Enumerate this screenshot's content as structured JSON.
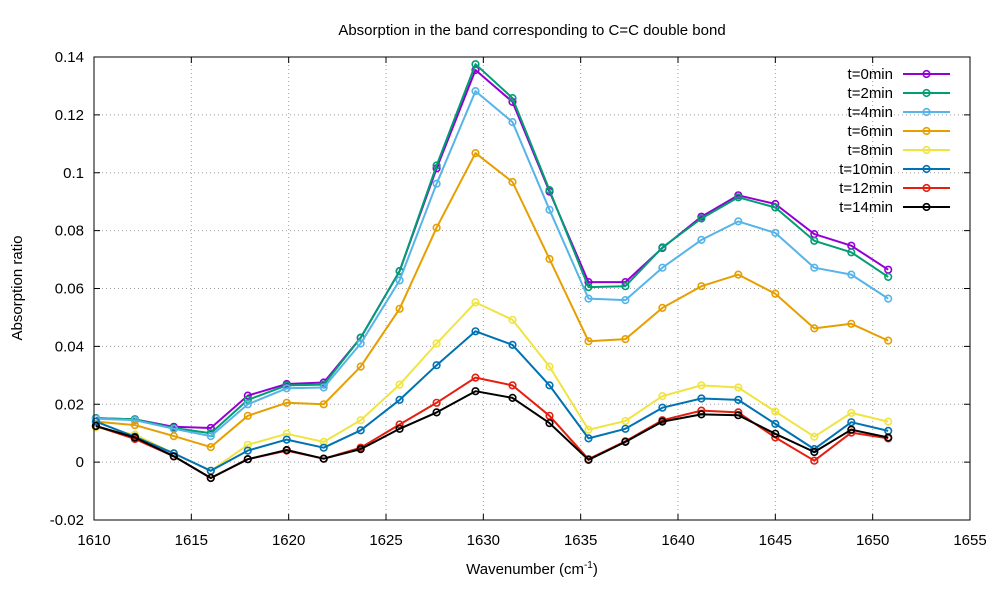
{
  "chart_data": {
    "type": "line",
    "title": "Absorption in the band corresponding to C=C double bond",
    "xlabel": "Wavenumber (cm",
    "xlabel_sup": "-1",
    "xlabel_end": ")",
    "ylabel": "Absorption ratio",
    "xlim": [
      1610,
      1655
    ],
    "ylim": [
      -0.02,
      0.14
    ],
    "xticks": [
      1610,
      1615,
      1620,
      1625,
      1630,
      1635,
      1640,
      1645,
      1650,
      1655
    ],
    "yticks": [
      -0.02,
      0,
      0.02,
      0.04,
      0.06,
      0.08,
      0.1,
      0.12,
      0.14
    ],
    "ytick_labels": [
      "-0.02",
      "0",
      "0.02",
      "0.04",
      "0.06",
      "0.08",
      "0.1",
      "0.12",
      "0.14"
    ],
    "grid": true,
    "legend_position": "top-right",
    "x": [
      1610.1,
      1612.1,
      1614.1,
      1616.0,
      1617.9,
      1619.9,
      1621.8,
      1623.7,
      1625.7,
      1627.6,
      1629.6,
      1631.5,
      1633.4,
      1635.4,
      1637.3,
      1639.2,
      1641.2,
      1643.1,
      1645.0,
      1647.0,
      1648.9,
      1650.8
    ],
    "series": [
      {
        "name": "t=0min",
        "color": "#9400d3",
        "values": [
          0.0152,
          0.0148,
          0.0122,
          0.0118,
          0.023,
          0.027,
          0.0275,
          0.043,
          0.066,
          0.1015,
          0.1355,
          0.1245,
          0.0935,
          0.0622,
          0.0622,
          0.074,
          0.0848,
          0.0922,
          0.0892,
          0.0788,
          0.0748,
          0.0665
        ]
      },
      {
        "name": "t=2min",
        "color": "#009e73",
        "values": [
          0.0152,
          0.0148,
          0.0118,
          0.01,
          0.0215,
          0.0265,
          0.0268,
          0.043,
          0.066,
          0.1025,
          0.1375,
          0.1258,
          0.094,
          0.0605,
          0.0608,
          0.0742,
          0.0842,
          0.0915,
          0.088,
          0.0765,
          0.0725,
          0.064
        ]
      },
      {
        "name": "t=4min",
        "color": "#56b4e9",
        "values": [
          0.015,
          0.0145,
          0.0115,
          0.009,
          0.02,
          0.0255,
          0.0258,
          0.041,
          0.0628,
          0.0962,
          0.1282,
          0.1175,
          0.0872,
          0.0565,
          0.056,
          0.0672,
          0.0768,
          0.0832,
          0.0792,
          0.0672,
          0.0648,
          0.0565
        ]
      },
      {
        "name": "t=6min",
        "color": "#e69f00",
        "values": [
          0.014,
          0.0128,
          0.009,
          0.0052,
          0.016,
          0.0205,
          0.02,
          0.033,
          0.053,
          0.081,
          0.1068,
          0.0968,
          0.0702,
          0.0418,
          0.0425,
          0.0533,
          0.0608,
          0.0648,
          0.0582,
          0.0462,
          0.0478,
          0.042
        ]
      },
      {
        "name": "t=8min",
        "color": "#f0e442",
        "values": [
          0.012,
          0.0095,
          0.003,
          -0.003,
          0.006,
          0.0098,
          0.007,
          0.0145,
          0.0268,
          0.041,
          0.0552,
          0.0492,
          0.033,
          0.0112,
          0.0142,
          0.0228,
          0.0265,
          0.0258,
          0.0175,
          0.0088,
          0.017,
          0.014
        ]
      },
      {
        "name": "t=10min",
        "color": "#0072b2",
        "values": [
          0.014,
          0.0088,
          0.003,
          -0.003,
          0.004,
          0.0078,
          0.005,
          0.011,
          0.0215,
          0.0335,
          0.0452,
          0.0405,
          0.0265,
          0.0082,
          0.0115,
          0.0188,
          0.022,
          0.0215,
          0.0132,
          0.0045,
          0.0138,
          0.0108
        ]
      },
      {
        "name": "t=12min",
        "color": "#e51e10",
        "values": [
          0.0125,
          0.008,
          0.002,
          -0.0055,
          0.001,
          0.004,
          0.0012,
          0.005,
          0.013,
          0.0205,
          0.0292,
          0.0265,
          0.016,
          0.001,
          0.0072,
          0.0145,
          0.0178,
          0.0172,
          0.0085,
          0.0005,
          0.0102,
          0.0082
        ]
      },
      {
        "name": "t=14min",
        "color": "#000000",
        "values": [
          0.0125,
          0.0085,
          0.002,
          -0.0055,
          0.001,
          0.0042,
          0.0012,
          0.0045,
          0.0115,
          0.0172,
          0.0245,
          0.0222,
          0.0135,
          0.0008,
          0.007,
          0.014,
          0.0165,
          0.0162,
          0.0098,
          0.0035,
          0.0112,
          0.0085
        ]
      }
    ]
  }
}
